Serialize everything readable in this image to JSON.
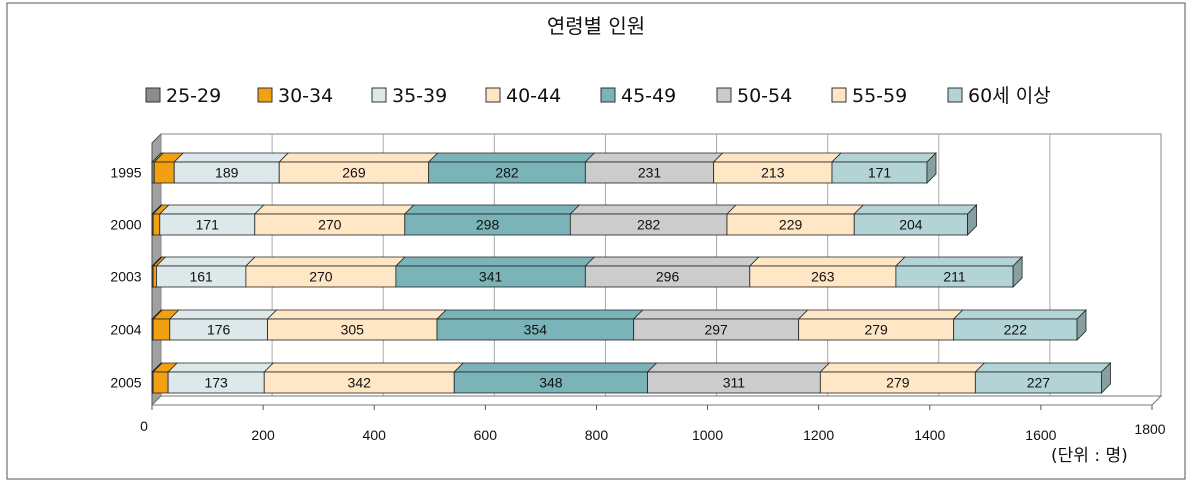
{
  "chart_data": {
    "type": "bar",
    "orientation": "horizontal",
    "stacked": true,
    "three_d": true,
    "title": "연령별 인원",
    "unit": "(단위 : 명)",
    "categories": [
      "1995",
      "2000",
      "2003",
      "2004",
      "2005"
    ],
    "x_ticks": [
      "0",
      "200",
      "400",
      "600",
      "800",
      "1000",
      "1200",
      "1400",
      "1600",
      "1800"
    ],
    "xlim": [
      0,
      1800
    ],
    "grid": true,
    "legend_position": "top",
    "series": [
      {
        "name": "25-29",
        "color": "#8c8c8c",
        "values": [
          4,
          2,
          2,
          2,
          2
        ],
        "labels": [
          null,
          null,
          null,
          null,
          null
        ]
      },
      {
        "name": "30-34",
        "color": "#f0a010",
        "values": [
          36,
          12,
          6,
          30,
          27
        ],
        "labels": [
          null,
          null,
          null,
          null,
          null
        ]
      },
      {
        "name": "35-39",
        "color": "#dde8ea",
        "values": [
          189,
          171,
          161,
          176,
          173
        ],
        "labels": [
          "189",
          "171",
          "161",
          "176",
          "173"
        ]
      },
      {
        "name": "40-44",
        "color": "#ffe6c4",
        "values": [
          269,
          270,
          270,
          305,
          342
        ],
        "labels": [
          "269",
          "270",
          "270",
          "305",
          "342"
        ]
      },
      {
        "name": "45-49",
        "color": "#7ab4b8",
        "values": [
          282,
          298,
          341,
          354,
          348
        ],
        "labels": [
          "282",
          "298",
          "341",
          "354",
          "348"
        ]
      },
      {
        "name": "50-54",
        "color": "#cccccc",
        "values": [
          231,
          282,
          296,
          297,
          311
        ],
        "labels": [
          "231",
          "282",
          "296",
          "297",
          "311"
        ]
      },
      {
        "name": "55-59",
        "color": "#ffe6c4",
        "values": [
          213,
          229,
          263,
          279,
          279
        ],
        "labels": [
          "213",
          "229",
          "263",
          "279",
          "279"
        ]
      },
      {
        "name": "60세 이상",
        "color": "#b3d4d6",
        "values": [
          171,
          204,
          211,
          222,
          227
        ],
        "labels": [
          "171",
          "204",
          "211",
          "222",
          "227"
        ]
      }
    ]
  }
}
